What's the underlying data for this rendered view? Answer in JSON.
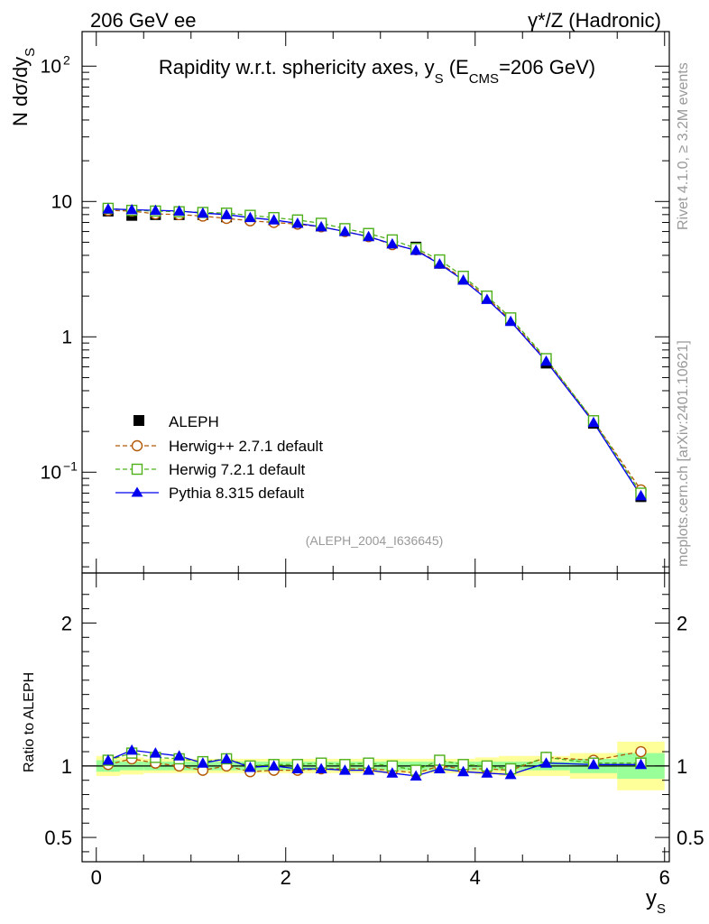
{
  "header": {
    "left": "206 GeV ee",
    "right": "γ*/Z (Hadronic)"
  },
  "side": {
    "rivet": "Rivet 4.1.0, ≥ 3.2M events",
    "mcplots": "mcplots.cern.ch [arXiv:2401.10621]"
  },
  "analysis_id": "(ALEPH_2004_I636645)",
  "colors": {
    "aleph": "#000000",
    "herwigpp": "#b35806",
    "herwig7": "#4daf1a",
    "pythia": "#0000ee",
    "band_inner": "#99ff99",
    "band_outer": "#ffff99",
    "side_text": "#999999"
  },
  "chart_data": [
    {
      "type": "scatter",
      "panel": "main",
      "title": "Rapidity w.r.t. sphericity axes, y_S (E_CMS=206 GeV)",
      "title_parts": {
        "main": "Rapidity w.r.t. sphericity axes, y",
        "sub_s": "S",
        "paren_open": " (E",
        "sub_cms": "CMS",
        "rest": "=206 GeV)"
      },
      "ylabel": "N  dσ/dy_S",
      "ylabel_parts": {
        "main": "N  dσ/dy",
        "sub": "S"
      },
      "yscale": "log",
      "ylim": [
        0.018,
        180
      ],
      "xlim": [
        -0.15,
        6.05
      ],
      "ytick_labels": [
        {
          "value": 0.1,
          "label": "10",
          "sup": "−1"
        },
        {
          "value": 1,
          "label": "1"
        },
        {
          "value": 10,
          "label": "10"
        },
        {
          "value": 100,
          "label": "10",
          "sup": "2"
        }
      ],
      "legend_position": "lower-left",
      "x": [
        0.125,
        0.375,
        0.625,
        0.875,
        1.125,
        1.375,
        1.625,
        1.875,
        2.125,
        2.375,
        2.625,
        2.875,
        3.125,
        3.375,
        3.625,
        3.875,
        4.125,
        4.375,
        4.75,
        5.25,
        5.75
      ],
      "series": [
        {
          "name": "ALEPH",
          "marker": "square-filled",
          "color": "#000000",
          "values": [
            8.5,
            7.9,
            8.0,
            8.0,
            8.0,
            7.7,
            7.6,
            7.3,
            7.0,
            6.6,
            6.1,
            5.6,
            5.0,
            4.6,
            3.5,
            2.7,
            1.95,
            1.35,
            0.64,
            0.23,
            0.066
          ]
        },
        {
          "name": "Herwig++ 2.7.1 default",
          "marker": "circle-open",
          "color": "#b35806",
          "line": "dashed",
          "values": [
            8.6,
            8.5,
            8.1,
            8.0,
            7.8,
            7.5,
            7.2,
            7.0,
            6.8,
            6.5,
            6.0,
            5.5,
            4.8,
            4.4,
            3.5,
            2.7,
            1.95,
            1.33,
            0.68,
            0.24,
            0.074
          ]
        },
        {
          "name": "Herwig 7.2.1 default",
          "marker": "square-open",
          "color": "#4daf1a",
          "line": "dashed",
          "values": [
            8.9,
            8.6,
            8.5,
            8.4,
            8.3,
            8.2,
            7.9,
            7.6,
            7.3,
            6.9,
            6.3,
            5.8,
            5.2,
            4.5,
            3.7,
            2.8,
            2.0,
            1.38,
            0.69,
            0.24,
            0.07
          ]
        },
        {
          "name": "Pythia 8.315 default",
          "marker": "triangle-filled",
          "color": "#0000ee",
          "line": "solid",
          "values": [
            8.8,
            8.7,
            8.6,
            8.5,
            8.2,
            8.0,
            7.6,
            7.3,
            6.9,
            6.5,
            6.0,
            5.5,
            4.85,
            4.35,
            3.45,
            2.62,
            1.89,
            1.3,
            0.66,
            0.233,
            0.067
          ]
        }
      ]
    },
    {
      "type": "scatter",
      "panel": "ratio",
      "ylabel": "Ratio to ALEPH",
      "xlabel": "y_S",
      "xlabel_parts": {
        "main": "y",
        "sub": "S"
      },
      "ylim": [
        0.33,
        2.35
      ],
      "xlim": [
        -0.15,
        6.05
      ],
      "ytick_labels": [
        {
          "value": 0.5,
          "label": "0.5"
        },
        {
          "value": 1,
          "label": "1"
        },
        {
          "value": 2,
          "label": "2"
        }
      ],
      "xtick_labels": [
        {
          "value": 0,
          "label": "0"
        },
        {
          "value": 2,
          "label": "2"
        },
        {
          "value": 4,
          "label": "4"
        },
        {
          "value": 6,
          "label": "6"
        }
      ],
      "bin_edges": [
        0,
        0.25,
        0.5,
        0.75,
        1.0,
        1.25,
        1.5,
        1.75,
        2.0,
        2.25,
        2.5,
        2.75,
        3.0,
        3.25,
        3.5,
        3.75,
        4.0,
        4.25,
        4.5,
        5.0,
        5.5,
        6.0
      ],
      "band_inner": [
        0.04,
        0.03,
        0.03,
        0.03,
        0.03,
        0.03,
        0.03,
        0.03,
        0.03,
        0.03,
        0.03,
        0.03,
        0.03,
        0.03,
        0.03,
        0.03,
        0.03,
        0.03,
        0.03,
        0.05,
        0.09
      ],
      "band_outer": [
        0.07,
        0.06,
        0.05,
        0.05,
        0.05,
        0.05,
        0.05,
        0.05,
        0.05,
        0.05,
        0.05,
        0.05,
        0.05,
        0.05,
        0.05,
        0.05,
        0.06,
        0.07,
        0.07,
        0.09,
        0.17
      ],
      "x": [
        0.125,
        0.375,
        0.625,
        0.875,
        1.125,
        1.375,
        1.625,
        1.875,
        2.125,
        2.375,
        2.625,
        2.875,
        3.125,
        3.375,
        3.625,
        3.875,
        4.125,
        4.375,
        4.75,
        5.25,
        5.75
      ],
      "series": [
        {
          "name": "Herwig++ 2.7.1 default",
          "marker": "circle-open",
          "color": "#b35806",
          "line": "dashed",
          "values": [
            1.01,
            1.05,
            1.02,
            1.0,
            0.97,
            1.0,
            0.96,
            0.97,
            0.97,
            0.98,
            0.98,
            0.98,
            0.97,
            0.95,
            1.0,
            0.98,
            0.98,
            0.97,
            1.06,
            1.04,
            1.1
          ]
        },
        {
          "name": "Herwig 7.2.1 default",
          "marker": "square-open",
          "color": "#4daf1a",
          "line": "dashed",
          "values": [
            1.04,
            1.09,
            1.06,
            1.05,
            1.03,
            1.05,
            1.0,
            1.01,
            1.01,
            1.02,
            1.01,
            1.02,
            1.0,
            0.97,
            1.04,
            1.01,
            1.0,
            0.98,
            1.06,
            1.02,
            1.02
          ]
        },
        {
          "name": "Pythia 8.315 default",
          "marker": "triangle-filled",
          "color": "#0000ee",
          "line": "solid",
          "values": [
            1.04,
            1.11,
            1.09,
            1.07,
            1.02,
            1.05,
            0.99,
            1.0,
            0.98,
            0.98,
            0.97,
            0.97,
            0.95,
            0.93,
            0.98,
            0.96,
            0.95,
            0.94,
            1.02,
            1.01,
            1.01
          ]
        }
      ]
    }
  ]
}
